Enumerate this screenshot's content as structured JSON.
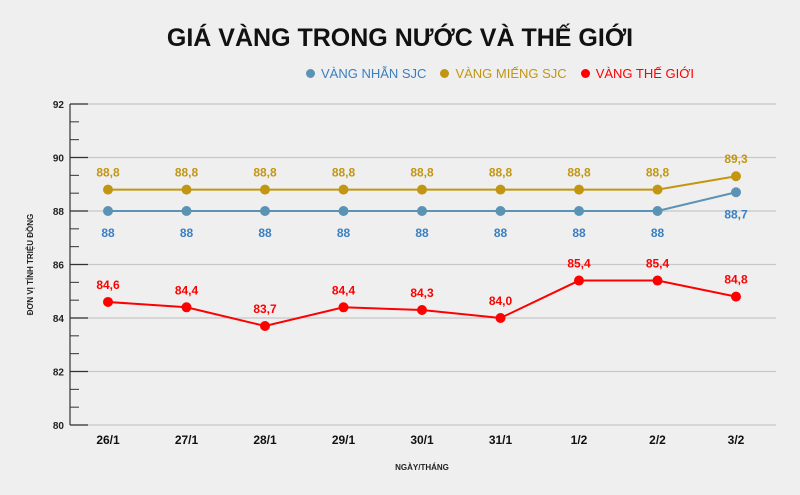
{
  "chart_data": {
    "type": "line",
    "title": "GIÁ VÀNG TRONG NƯỚC VÀ THẾ GIỚI",
    "xlabel": "NGÀY/THÁNG",
    "ylabel": "ĐƠN VỊ TÍNH TRIỆU ĐỒNG",
    "ylim": [
      80,
      92
    ],
    "yticks": [
      "80",
      "82",
      "84",
      "86",
      "88",
      "90",
      "92"
    ],
    "grid": true,
    "legend_position": "top",
    "categories": [
      "26/1",
      "27/1",
      "28/1",
      "29/1",
      "30/1",
      "31/1",
      "1/2",
      "2/2",
      "3/2"
    ],
    "series": [
      {
        "name": "VÀNG NHẪN SJC",
        "color": "#5b93b4",
        "label_color": "#3a7fc0",
        "label_pos": "below",
        "values": [
          88,
          88,
          88,
          88,
          88,
          88,
          88,
          88,
          88.7
        ],
        "labels": [
          "88",
          "88",
          "88",
          "88",
          "88",
          "88",
          "88",
          "88",
          "88,7"
        ]
      },
      {
        "name": "VÀNG MIẾNG SJC",
        "color": "#c29612",
        "label_color": "#c29612",
        "label_pos": "above",
        "values": [
          88.8,
          88.8,
          88.8,
          88.8,
          88.8,
          88.8,
          88.8,
          88.8,
          89.3
        ],
        "labels": [
          "88,8",
          "88,8",
          "88,8",
          "88,8",
          "88,8",
          "88,8",
          "88,8",
          "88,8",
          "89,3"
        ]
      },
      {
        "name": "VÀNG THẾ GIỚI",
        "color": "#ff0000",
        "label_color": "#ff0000",
        "label_pos": "above",
        "values": [
          84.6,
          84.4,
          83.7,
          84.4,
          84.3,
          84.0,
          85.4,
          85.4,
          84.8
        ],
        "labels": [
          "84,6",
          "84,4",
          "83,7",
          "84,4",
          "84,3",
          "84,0",
          "85,4",
          "85,4",
          "84,8"
        ]
      }
    ]
  }
}
